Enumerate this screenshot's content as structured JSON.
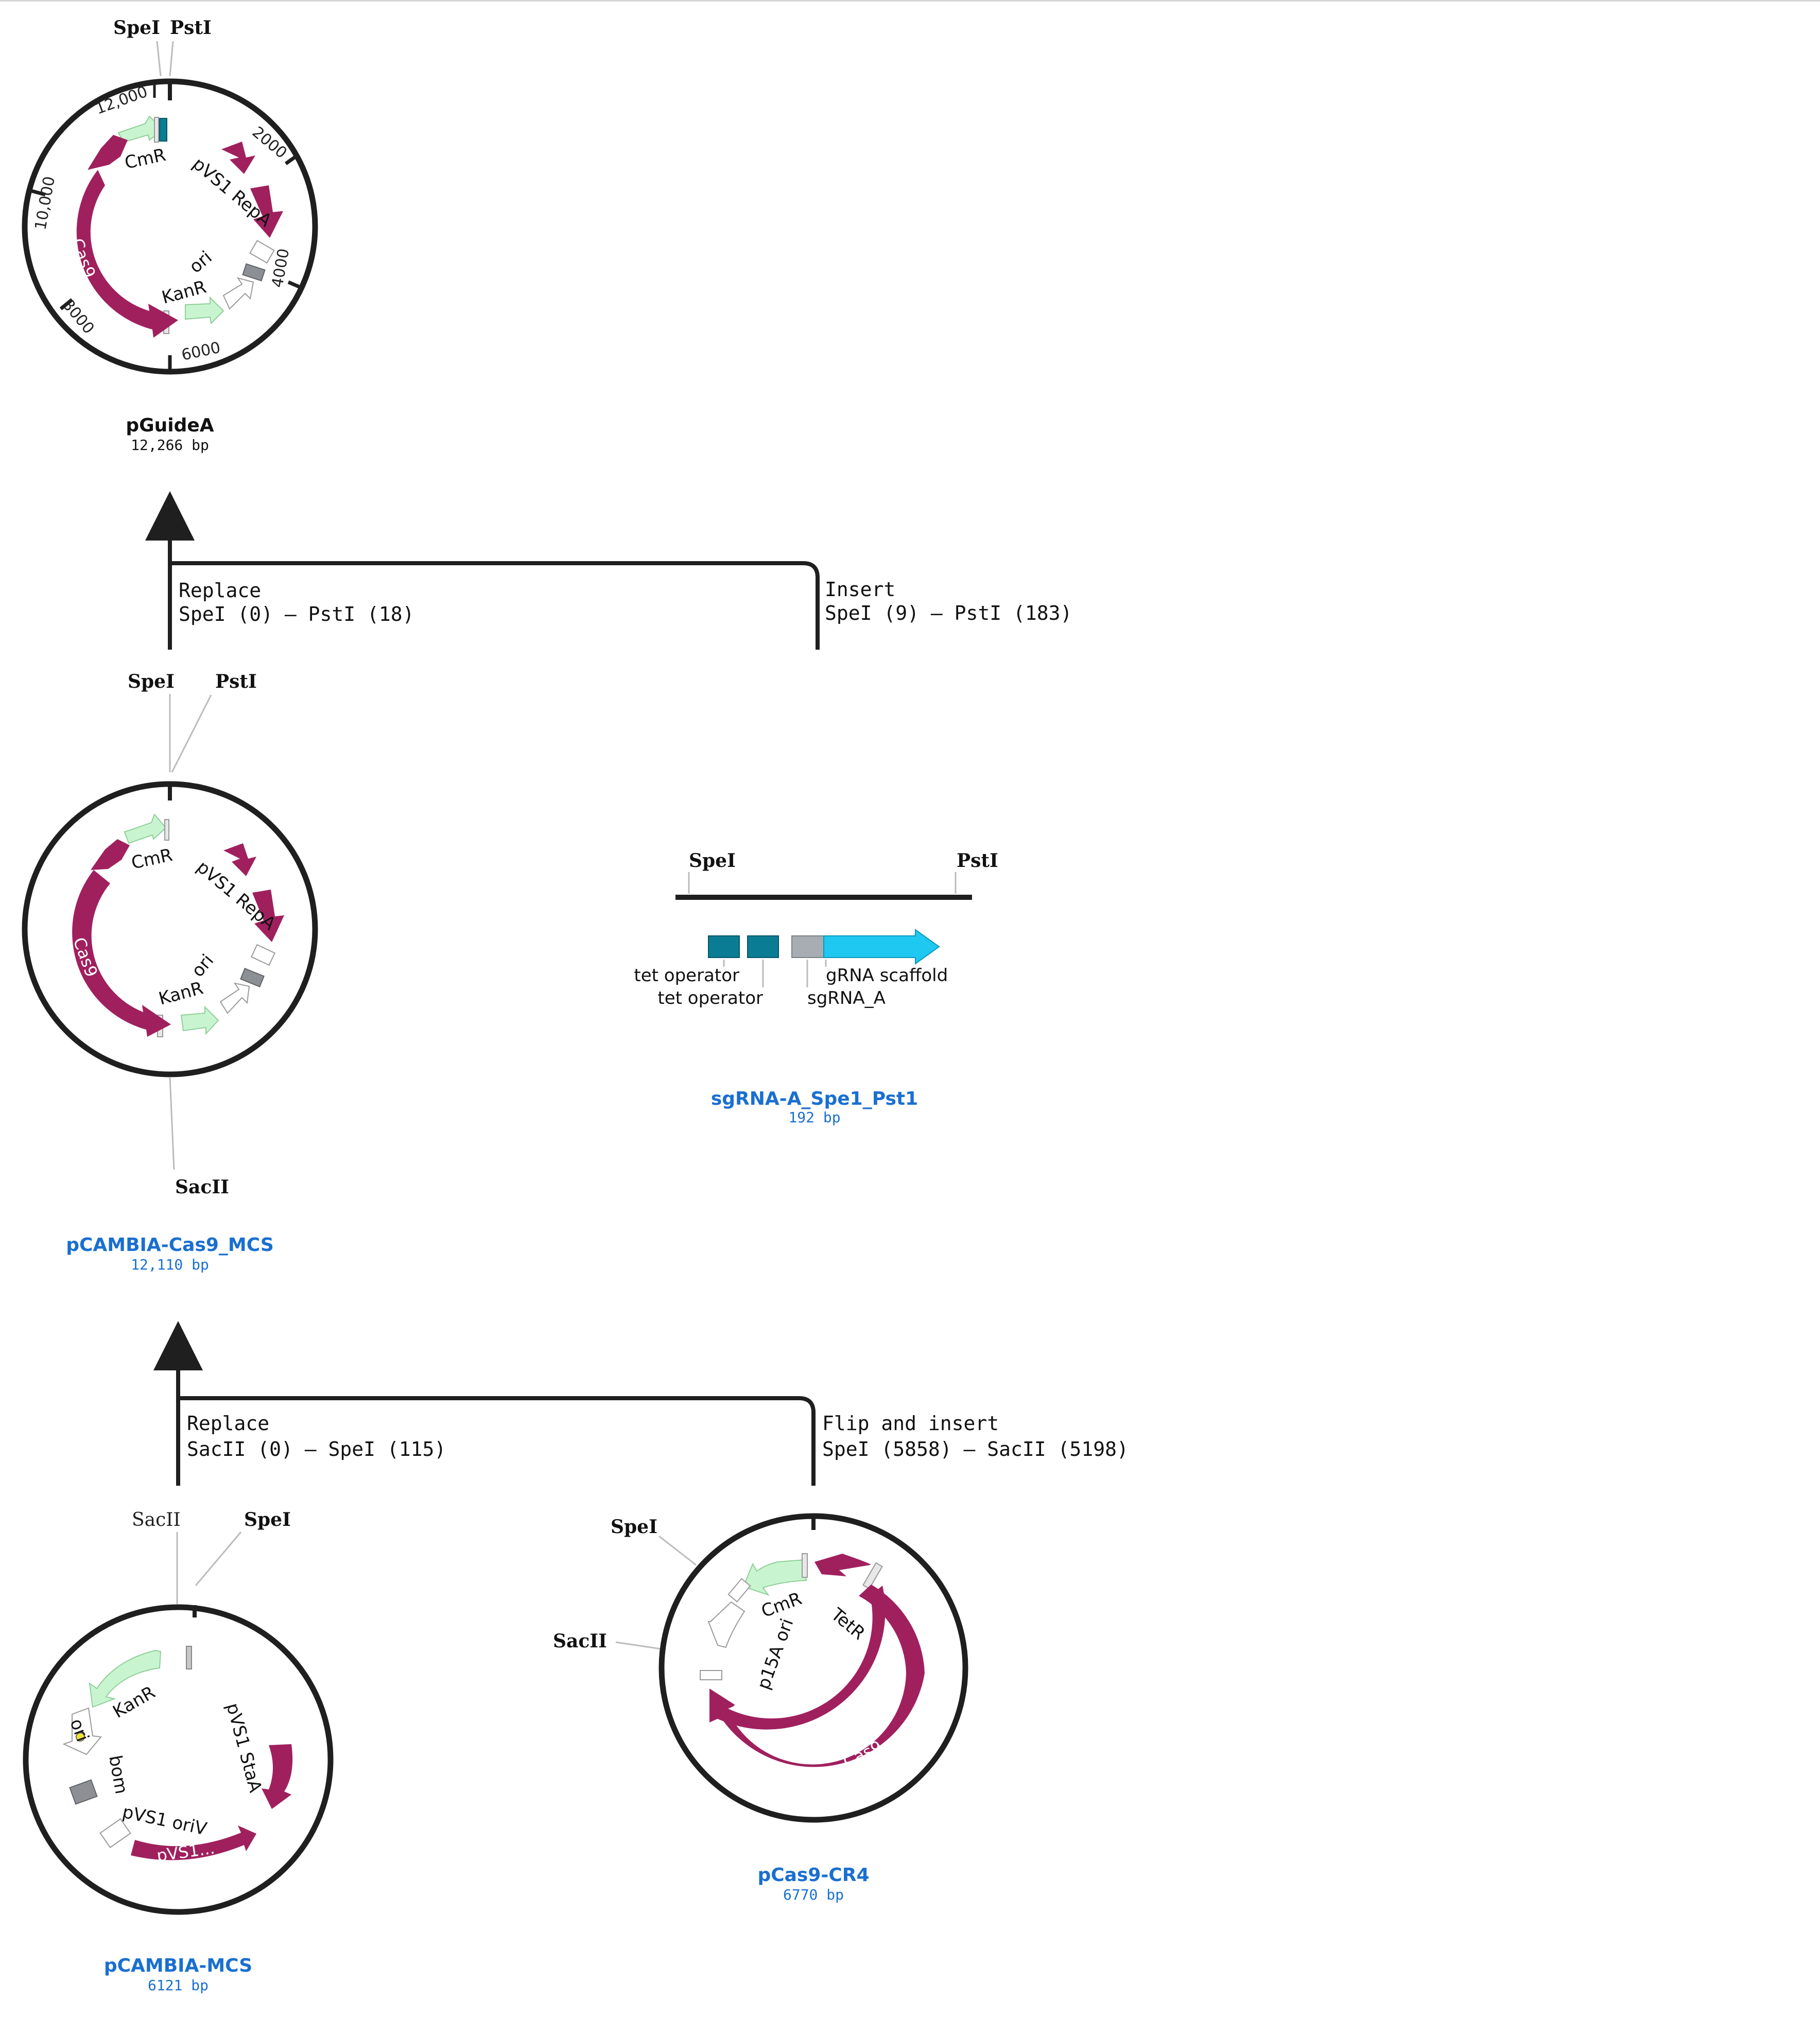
{
  "colors": {
    "cas9": "#a0205e",
    "cmr_kanr": "#c8f5cf",
    "tet_operator": "#0a7d94",
    "grna_scaffold": "#1ec8f0",
    "sgrna": "#a8adb3",
    "ori_grey": "#8c9095",
    "backbone": "#1f1f1f",
    "link_blue": "#1a6fd0"
  },
  "plasmids": {
    "pGuideA": {
      "name": "pGuideA",
      "size": "12,266 bp",
      "sites": [
        "SpeI",
        "PstI"
      ],
      "ticks": [
        "12,000",
        "2000",
        "4000",
        "6000",
        "8000",
        "10,000"
      ],
      "features": [
        "CmR",
        "pVS1 RepA",
        "ori",
        "KanR",
        "Cas9"
      ]
    },
    "pCAMBIA_Cas9_MCS": {
      "name": "pCAMBIA-Cas9_MCS",
      "size": "12,110 bp",
      "sites": [
        "SpeI",
        "PstI",
        "SacII"
      ],
      "features": [
        "CmR",
        "pVS1 RepA",
        "ori",
        "KanR",
        "Cas9"
      ]
    },
    "sgRNA": {
      "name": "sgRNA-A_Spe1_Pst1",
      "size": "192 bp",
      "sites": [
        "SpeI",
        "PstI"
      ],
      "features": [
        "tet operator",
        "tet operator",
        "gRNA scaffold",
        "sgRNA_A"
      ]
    },
    "pCAMBIA_MCS": {
      "name": "pCAMBIA-MCS",
      "size": "6121 bp",
      "sites": [
        "SacII",
        "SpeI"
      ],
      "features": [
        "KanR",
        "ori",
        "bom",
        "pVS1 oriV",
        "pVS1 StaA",
        "pVS1..."
      ]
    },
    "pCas9_CR4": {
      "name": "pCas9-CR4",
      "size": "6770 bp",
      "sites": [
        "SpeI",
        "SacII"
      ],
      "features": [
        "CmR",
        "p15A ori",
        "TetR",
        "Cas9"
      ]
    }
  },
  "operations": {
    "op1": {
      "left_title": "Replace",
      "left_detail": "SpeI (0) — PstI (18)",
      "right_title": "Insert",
      "right_detail": "SpeI (9) — PstI (183)"
    },
    "op2": {
      "left_title": "Replace",
      "left_detail": "SacII (0) — SpeI (115)",
      "right_title": "Flip and insert",
      "right_detail": "SpeI (5858) — SacII (5198)"
    }
  }
}
